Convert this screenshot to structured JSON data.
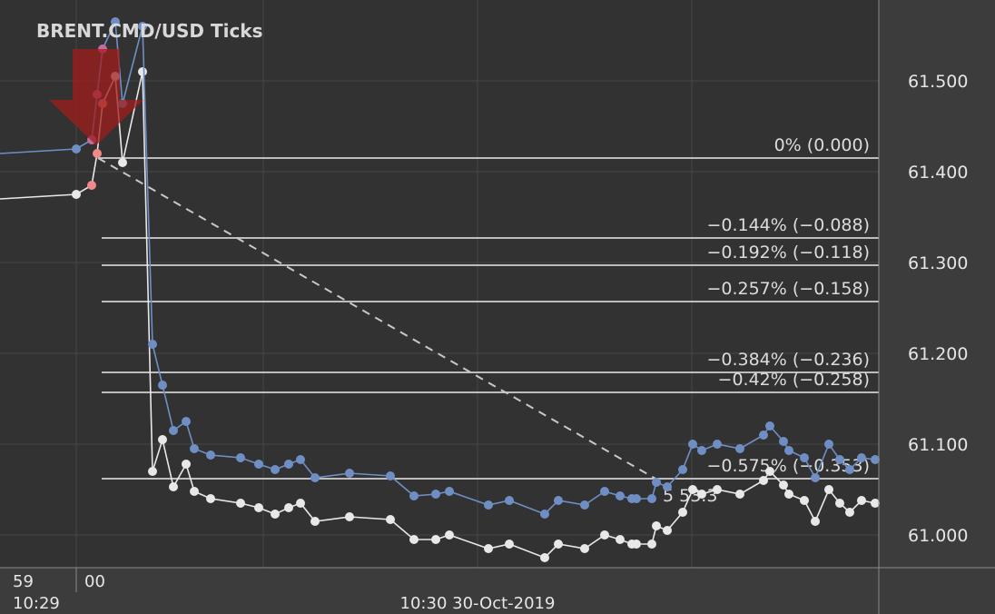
{
  "chart_data": {
    "type": "line",
    "title": "BRENT.CMD/USD  Ticks",
    "y_ticks": [
      "61.500",
      "61.400",
      "61.300",
      "61.200",
      "61.100",
      "61.000"
    ],
    "y_tick_values": [
      61.5,
      61.4,
      61.3,
      61.2,
      61.1,
      61.0
    ],
    "ylim": [
      60.96,
      61.57
    ],
    "x_ticks": [
      {
        "label": "59",
        "sub": "10:29"
      },
      {
        "label": "00",
        "sub": ""
      }
    ],
    "x_axis_caption": "10:30 30-Oct-2019",
    "grid": true,
    "series": [
      {
        "role": "ask",
        "color": "#6f8fc4",
        "values": [
          61.42,
          61.425,
          61.435,
          61.485,
          61.535,
          61.565,
          61.475,
          61.56,
          61.21,
          61.165,
          61.115,
          61.125,
          61.095,
          61.088,
          61.085,
          61.078,
          61.072,
          61.078,
          61.083,
          61.063,
          61.068,
          61.065,
          61.043,
          61.045,
          61.048,
          61.033,
          61.038,
          61.023,
          61.038,
          61.033,
          61.048,
          61.043,
          61.04,
          61.04,
          61.04,
          61.058,
          61.053,
          61.072,
          61.1,
          61.093,
          61.1,
          61.095,
          61.11,
          61.12,
          61.103,
          61.093,
          61.085,
          61.063,
          61.1,
          61.083,
          61.072,
          61.085,
          61.083
        ]
      },
      {
        "role": "bid",
        "color": "#e8e8e8",
        "values": [
          61.37,
          61.375,
          61.385,
          61.42,
          61.475,
          61.505,
          61.41,
          61.51,
          61.07,
          61.105,
          61.053,
          61.078,
          61.048,
          61.04,
          61.035,
          61.03,
          61.023,
          61.03,
          61.035,
          61.015,
          61.02,
          61.017,
          60.995,
          60.995,
          61.0,
          60.985,
          60.99,
          60.975,
          60.99,
          60.985,
          61.0,
          60.995,
          60.99,
          60.99,
          60.99,
          61.01,
          61.005,
          61.025,
          61.05,
          61.045,
          61.05,
          61.045,
          61.06,
          61.07,
          61.055,
          61.045,
          61.038,
          61.015,
          61.05,
          61.035,
          61.025,
          61.038,
          61.035
        ]
      }
    ],
    "fibonacci": {
      "levels": [
        {
          "label": "0% (0.000)",
          "price": 61.415
        },
        {
          "label": "−0.144% (−0.088)",
          "price": 61.327
        },
        {
          "label": "−0.192% (−0.118)",
          "price": 61.297
        },
        {
          "label": "−0.257% (−0.158)",
          "price": 61.257
        },
        {
          "label": "−0.384% (−0.236)",
          "price": 61.179
        },
        {
          "label": "−0.42% (−0.258)",
          "price": 61.157
        },
        {
          "label": "−0.575% (−0.353)",
          "price": 61.062
        }
      ],
      "partial_label": "5  53.3"
    },
    "signal": {
      "type": "sell-arrow",
      "color": "#a01c1c"
    }
  }
}
